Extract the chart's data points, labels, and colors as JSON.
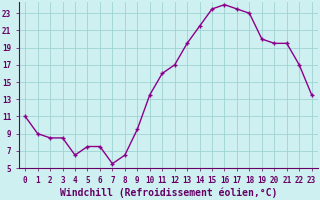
{
  "x": [
    0,
    1,
    2,
    3,
    4,
    5,
    6,
    7,
    8,
    9,
    10,
    11,
    12,
    13,
    14,
    15,
    16,
    17,
    18,
    19,
    20,
    21,
    22,
    23
  ],
  "y": [
    11,
    9,
    8.5,
    8.5,
    6.5,
    7.5,
    7.5,
    5.5,
    6.5,
    9.5,
    13.5,
    16,
    17,
    19.5,
    21.5,
    23.5,
    24,
    23.5,
    23,
    20,
    19.5,
    19.5,
    17,
    13.5
  ],
  "line_color": "#8b008b",
  "marker": "+",
  "background_color": "#cff0f0",
  "grid_color": "#9ed4d4",
  "xlabel": "Windchill (Refroidissement éolien,°C)",
  "ylim": [
    5,
    24
  ],
  "xlim": [
    -0.5,
    23.5
  ],
  "yticks": [
    5,
    7,
    9,
    11,
    13,
    15,
    17,
    19,
    21,
    23
  ],
  "xticks": [
    0,
    1,
    2,
    3,
    4,
    5,
    6,
    7,
    8,
    9,
    10,
    11,
    12,
    13,
    14,
    15,
    16,
    17,
    18,
    19,
    20,
    21,
    22,
    23
  ],
  "label_color": "#660066",
  "tick_fontsize": 5.5,
  "xlabel_fontsize": 7.0,
  "linewidth": 1.0,
  "markersize": 3.5,
  "markeredgewidth": 1.0
}
